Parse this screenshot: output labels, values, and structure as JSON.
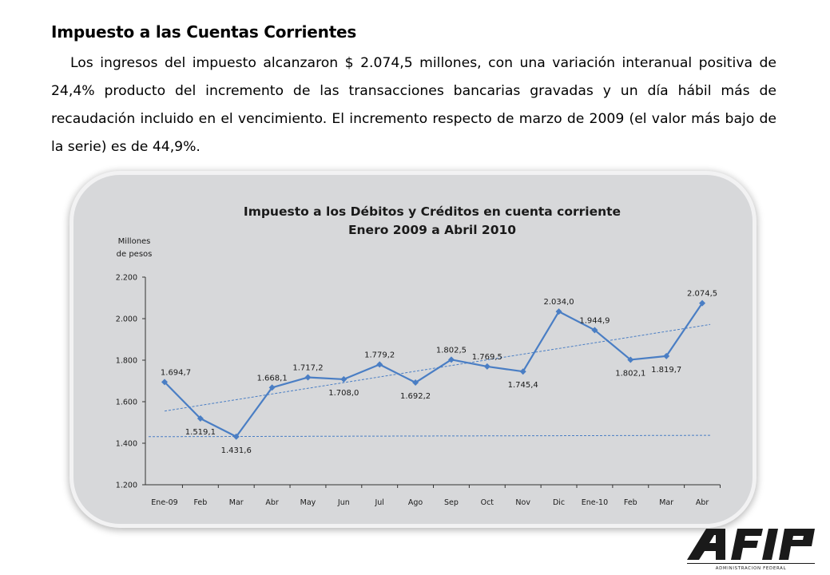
{
  "document": {
    "heading": "Impuesto a las Cuentas Corrientes",
    "paragraph": "Los ingresos del impuesto alcanzaron $ 2.074,5 millones, con una variación interanual positiva de 24,4% producto del incremento de las transacciones bancarias gravadas y un día hábil más de recaudación incluido en el vencimiento.  El incremento respecto de marzo de 2009 (el valor más bajo de la serie) es de 44,9%."
  },
  "chart_data": {
    "type": "line",
    "title": "Impuesto a los Débitos y Créditos en cuenta corriente",
    "subtitle": "Enero 2009 a Abril 2010",
    "ylabel_line1": "Millones",
    "ylabel_line2": "de pesos",
    "ylim": [
      1200,
      2200
    ],
    "yticks": [
      1200,
      1400,
      1600,
      1800,
      2000,
      2200
    ],
    "ytick_labels": [
      "1.200",
      "1.400",
      "1.600",
      "1.800",
      "2.000",
      "2.200"
    ],
    "categories": [
      "Ene-09",
      "Feb",
      "Mar",
      "Abr",
      "May",
      "Jun",
      "Jul",
      "Ago",
      "Sep",
      "Oct",
      "Nov",
      "Dic",
      "Ene-10",
      "Feb",
      "Mar",
      "Abr"
    ],
    "values": [
      1694.7,
      1519.1,
      1431.6,
      1668.1,
      1717.2,
      1708.0,
      1779.2,
      1692.2,
      1802.5,
      1769.5,
      1745.4,
      2034.0,
      1944.9,
      1802.1,
      1819.7,
      2074.5
    ],
    "value_labels": [
      "1.694,7",
      "1.519,1",
      "1.431,6",
      "1.668,1",
      "1.717,2",
      "1.708,0",
      "1.779,2",
      "1.692,2",
      "1.802,5",
      "1.769,5",
      "1.745,4",
      "2.034,0",
      "1.944,9",
      "1.802,1",
      "1.819,7",
      "2.074,5"
    ],
    "label_position": [
      "above",
      "below",
      "below",
      "above",
      "above",
      "below",
      "above",
      "below",
      "above",
      "above",
      "below",
      "above",
      "above",
      "below",
      "below",
      "above"
    ],
    "trendlines": [
      {
        "style": "dashed",
        "from": 1555,
        "to": 1972
      },
      {
        "style": "dashed",
        "from": 1431.6,
        "to": 1438
      }
    ],
    "grid": false,
    "legend": "none",
    "colors": {
      "series": "#4a7ec4",
      "trend": "#4a7ec4",
      "panel": "#d7d8da"
    }
  },
  "logo": {
    "wordmark": "AFIP",
    "caption": "ADMINISTRACION FEDERAL"
  }
}
